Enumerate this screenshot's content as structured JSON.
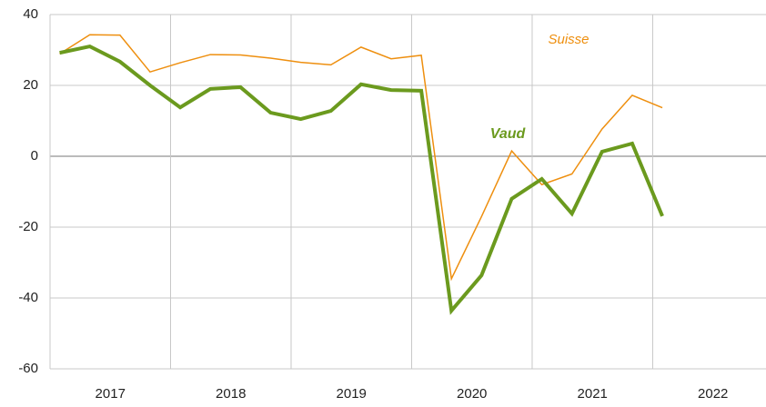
{
  "chart_data": {
    "type": "line",
    "x": [
      2017.08,
      2017.33,
      2017.58,
      2017.83,
      2018.08,
      2018.33,
      2018.58,
      2018.83,
      2019.08,
      2019.33,
      2019.58,
      2019.83,
      2020.08,
      2020.33,
      2020.58,
      2020.83,
      2021.08,
      2021.33,
      2021.58,
      2021.83,
      2022.08
    ],
    "series": [
      {
        "name": "Suisse",
        "color": "#ee8f0f",
        "width": 1.5,
        "values": [
          28.9,
          34.3,
          34.2,
          23.8,
          26.4,
          28.7,
          28.6,
          27.7,
          26.5,
          25.8,
          30.8,
          27.5,
          28.5,
          -34.6,
          -17,
          1.5,
          -8,
          -5,
          7.7,
          17.2,
          13.7
        ]
      },
      {
        "name": "Vaud",
        "color": "#6b9a1e",
        "width": 4,
        "values": [
          29.2,
          31,
          26.7,
          20,
          13.8,
          19,
          19.5,
          12.3,
          10.5,
          12.8,
          20.3,
          18.7,
          18.5,
          -43.6,
          -33.6,
          -12,
          -6.4,
          -16.2,
          1.3,
          3.6,
          -16.9
        ]
      }
    ],
    "xlim": [
      2017,
      2022.94
    ],
    "xticks": [
      {
        "value": 2017.5,
        "label": "2017"
      },
      {
        "value": 2018.5,
        "label": "2018"
      },
      {
        "value": 2019.5,
        "label": "2019"
      },
      {
        "value": 2020.5,
        "label": "2020"
      },
      {
        "value": 2021.5,
        "label": "2021"
      },
      {
        "value": 2022.5,
        "label": "2022"
      }
    ],
    "xgrid": [
      2017,
      2018,
      2019,
      2020,
      2021,
      2022
    ],
    "ylim": [
      -60,
      40
    ],
    "yticks": [
      40,
      20,
      0,
      -20,
      -40,
      -60
    ],
    "grid": true
  }
}
